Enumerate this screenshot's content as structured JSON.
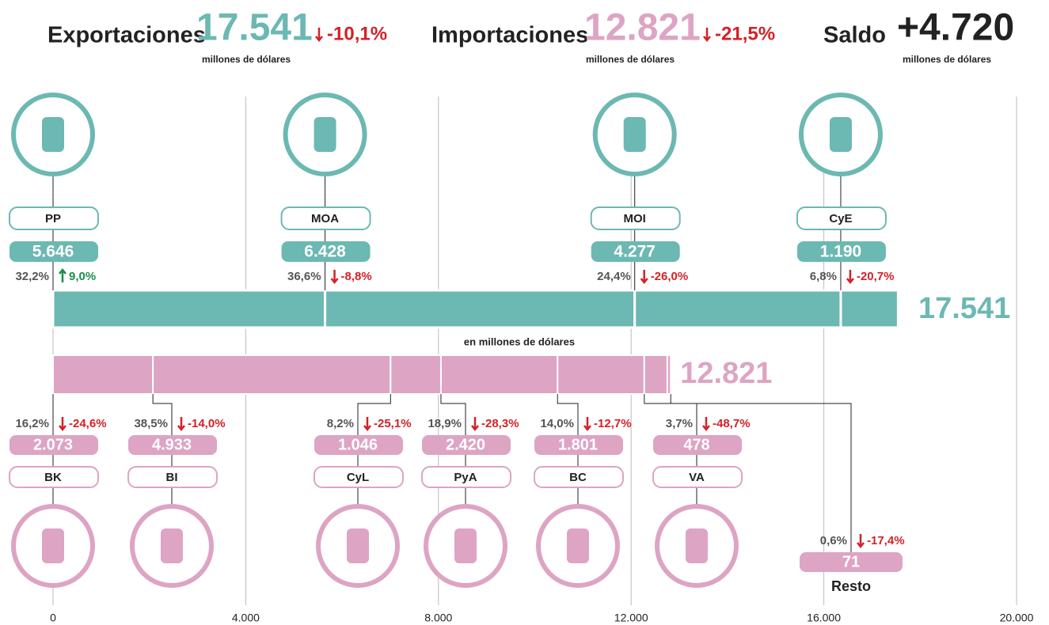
{
  "header": {
    "items": [
      {
        "label": "Exportaciones",
        "value": "17.541",
        "change": "-10,1%",
        "unit": "millones de dólares"
      },
      {
        "label": "Importaciones",
        "value": "12.821",
        "change": "-21,5%",
        "unit": "millones de dólares"
      },
      {
        "label": "Saldo",
        "value": "+4.720",
        "unit": "millones de dólares"
      }
    ]
  },
  "chart_data": {
    "type": "stacked-barh",
    "axis_label": "en millones de dólares",
    "xlim": [
      0,
      20000
    ],
    "xticks": [
      0,
      {
        "value": 4000,
        "label": "4.000"
      },
      {
        "value": 8000,
        "label": "8.000"
      },
      {
        "value": 12000,
        "label": "12.000"
      },
      {
        "value": 16000,
        "label": "16.000"
      },
      {
        "value": 20000,
        "label": "20.000"
      }
    ],
    "grid": true,
    "series": [
      {
        "name": "Exportaciones",
        "color": "#6cb8b3",
        "categories": [
          "PP",
          "MOA",
          "MOI",
          "CyE"
        ],
        "values": [
          5646,
          6428,
          4277,
          1190
        ],
        "value_labels": [
          "5.646",
          "6.428",
          "4.277",
          "1.190"
        ],
        "shares": [
          32.2,
          36.6,
          24.4,
          6.8
        ],
        "share_labels": [
          "32,2%",
          "36,6%",
          "24,4%",
          "6,8%"
        ],
        "changes": [
          9.0,
          -8.8,
          -26.0,
          -20.7
        ],
        "change_labels": [
          "9,0%",
          "-8,8%",
          "-26,0%",
          "-20,7%"
        ]
      },
      {
        "name": "Importaciones",
        "color": "#dda4c4",
        "categories": [
          "BK",
          "BI",
          "CyL",
          "PyA",
          "BC",
          "VA",
          "Resto"
        ],
        "values": [
          2073,
          4933,
          1046,
          2420,
          1801,
          478,
          71
        ],
        "value_labels": [
          "2.073",
          "4.933",
          "1.046",
          "2.420",
          "1.801",
          "478",
          "71"
        ],
        "shares": [
          16.2,
          38.5,
          8.2,
          18.9,
          14.0,
          3.7,
          0.6
        ],
        "share_labels": [
          "16,2%",
          "38,5%",
          "8,2%",
          "18,9%",
          "14,0%",
          "3,7%",
          "0,6%"
        ],
        "changes": [
          -24.6,
          -14.0,
          -25.1,
          -28.3,
          -12.7,
          -48.7,
          -17.4
        ],
        "change_labels": [
          "-24,6%",
          "-14,0%",
          "-25,1%",
          "-28,3%",
          "-12,7%",
          "-48,7%",
          "-17,4%"
        ]
      }
    ]
  }
}
